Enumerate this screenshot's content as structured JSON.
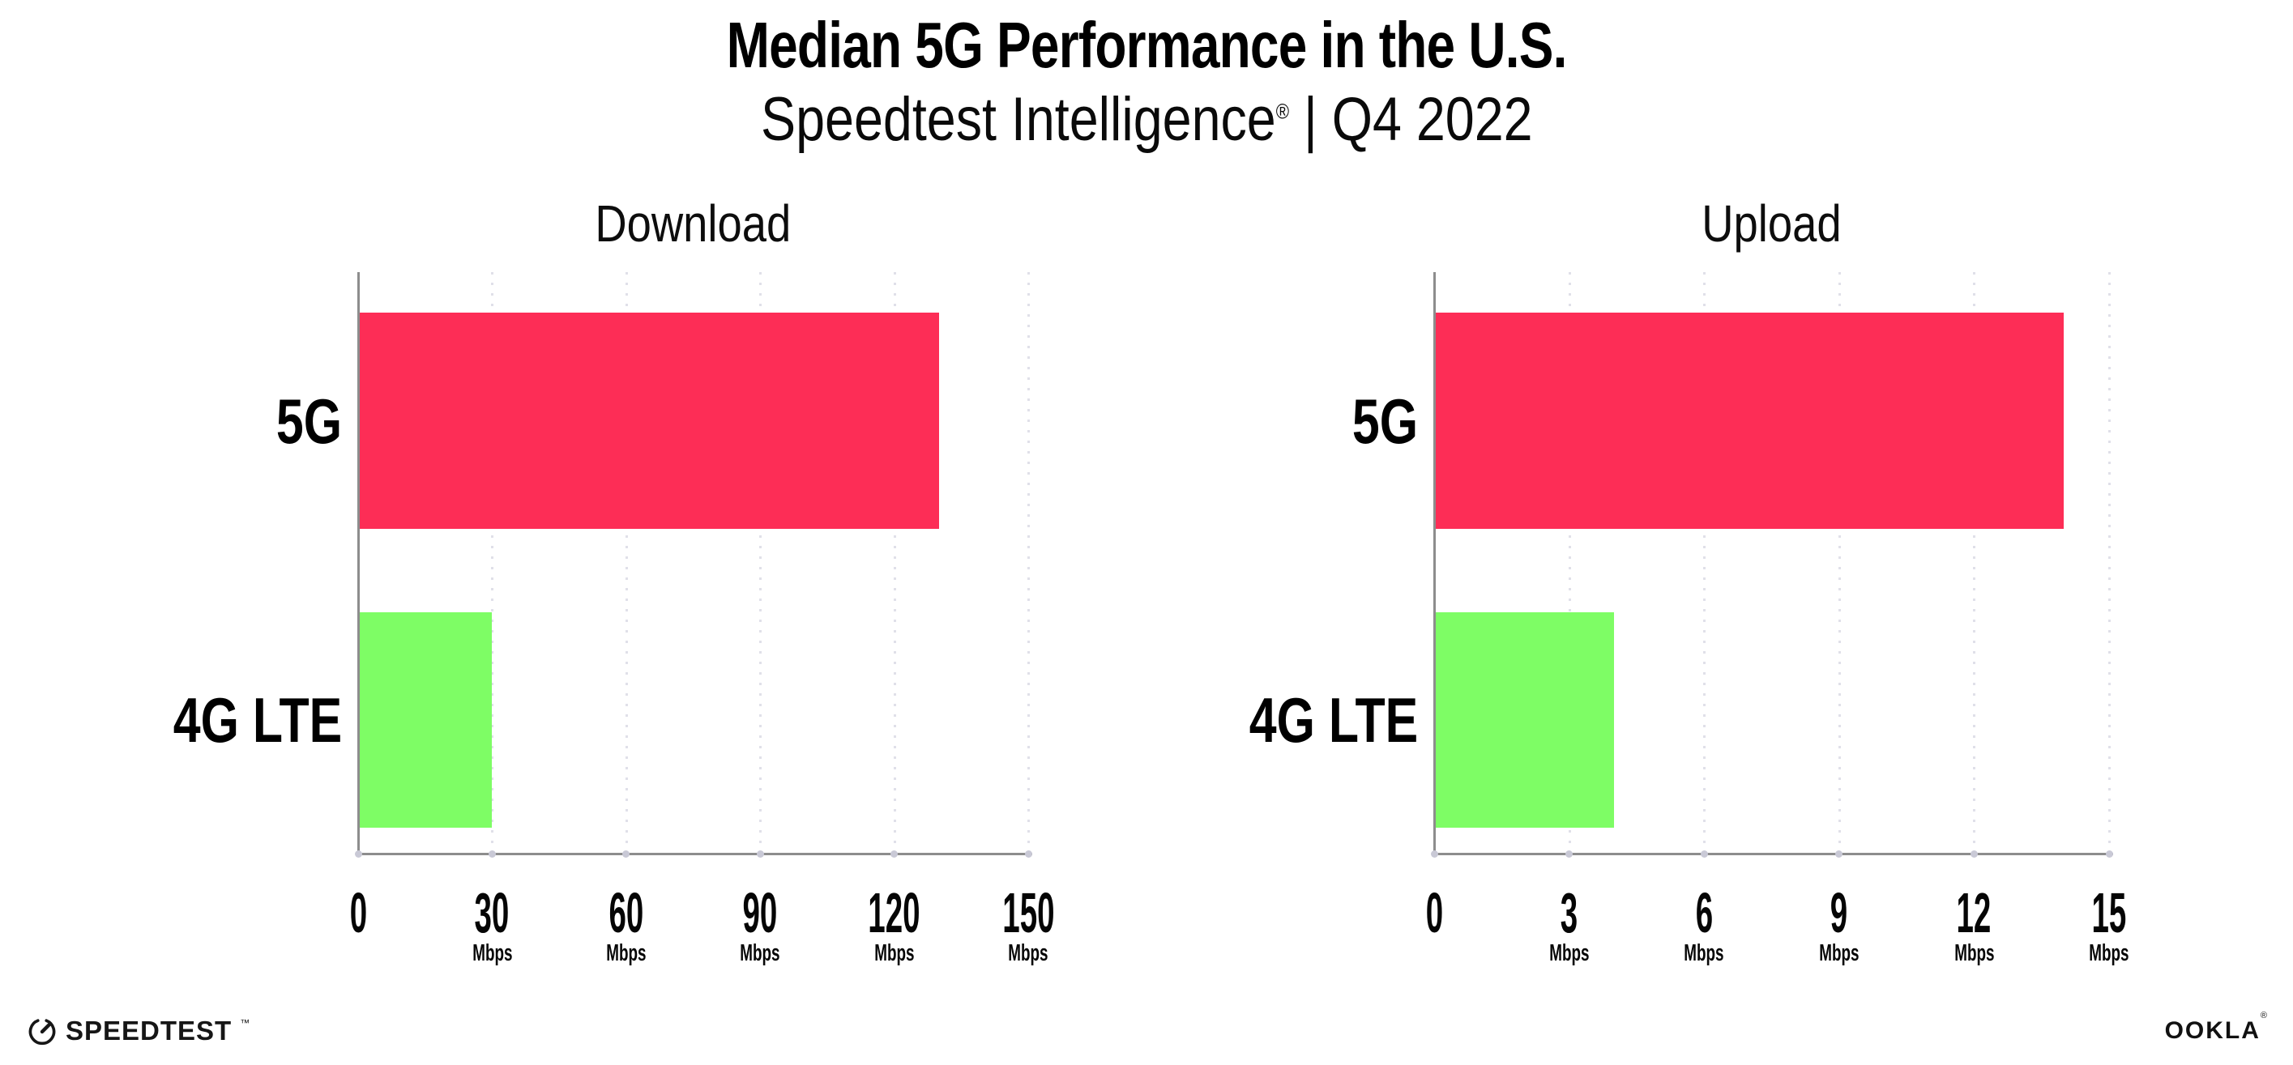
{
  "header": {
    "title": "Median 5G Performance in the U.S.",
    "subtitle_brand": "Speedtest Intelligence",
    "subtitle_reg": "®",
    "subtitle_rest": " | Q4 2022"
  },
  "footer": {
    "speedtest_label": "SPEEDTEST",
    "speedtest_tm": "™",
    "ookla_label": "OOKLA",
    "ookla_reg": "®"
  },
  "colors": {
    "bar_5g": "#FD2D56",
    "bar_4g_lte": "#7EFD65",
    "axis": "#8D8D8D",
    "grid_dot": "#E0E0E9",
    "tick_dot": "#C9C9D6",
    "text": "#000000"
  },
  "chart_data": [
    {
      "type": "bar",
      "orientation": "horizontal",
      "title": "Download",
      "categories": [
        "5G",
        "4G LTE"
      ],
      "values": [
        130,
        30
      ],
      "unit": "Mbps",
      "xlim": [
        0,
        150
      ],
      "xticks": [
        0,
        30,
        60,
        90,
        120,
        150
      ],
      "bar_colors": [
        "#FD2D56",
        "#7EFD65"
      ],
      "grid": "dotted-vertical",
      "legend": "none"
    },
    {
      "type": "bar",
      "orientation": "horizontal",
      "title": "Upload",
      "categories": [
        "5G",
        "4G LTE"
      ],
      "values": [
        14,
        4
      ],
      "unit": "Mbps",
      "xlim": [
        0,
        15
      ],
      "xticks": [
        0,
        3,
        6,
        9,
        12,
        15
      ],
      "bar_colors": [
        "#FD2D56",
        "#7EFD65"
      ],
      "grid": "dotted-vertical",
      "legend": "none"
    }
  ]
}
